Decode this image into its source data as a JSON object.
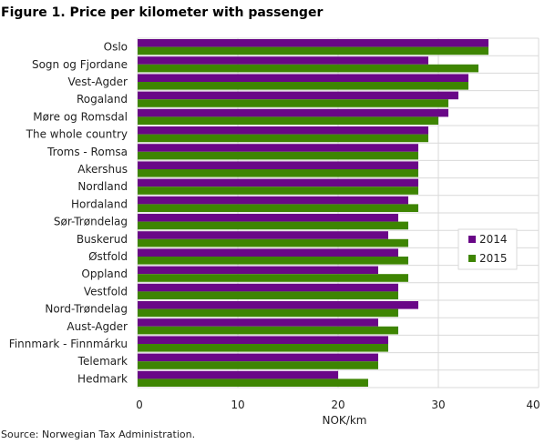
{
  "title": "Figure 1. Price per kilometer with passenger",
  "source": "Source: Norwegian Tax Administration.",
  "chart_data": {
    "type": "bar",
    "orientation": "horizontal",
    "title": "Figure 1. Price per kilometer with passenger",
    "xlabel": "NOK/km",
    "ylabel": "",
    "xlim": [
      0,
      40
    ],
    "xticks": [
      0,
      10,
      20,
      30,
      40
    ],
    "grid": true,
    "legend_position": "right",
    "categories": [
      "Oslo",
      "Sogn og Fjordane",
      "Vest-Agder",
      "Rogaland",
      "Møre og Romsdal",
      "The whole country",
      "Troms - Romsa",
      "Akershus",
      "Nordland",
      "Hordaland",
      "Sør-Trøndelag",
      "Buskerud",
      "Østfold",
      "Oppland",
      "Vestfold",
      "Nord-Trøndelag",
      "Aust-Agder",
      "Finnmark - Finnmárku",
      "Telemark",
      "Hedmark"
    ],
    "series": [
      {
        "name": "2014",
        "color": "#690787",
        "values": [
          35,
          29,
          33,
          32,
          31,
          29,
          28,
          28,
          28,
          27,
          26,
          25,
          26,
          24,
          26,
          28,
          24,
          25,
          24,
          20
        ]
      },
      {
        "name": "2015",
        "color": "#3e8502",
        "values": [
          35,
          34,
          33,
          31,
          30,
          29,
          28,
          28,
          28,
          28,
          27,
          27,
          27,
          27,
          26,
          26,
          26,
          25,
          24,
          23
        ]
      }
    ]
  }
}
